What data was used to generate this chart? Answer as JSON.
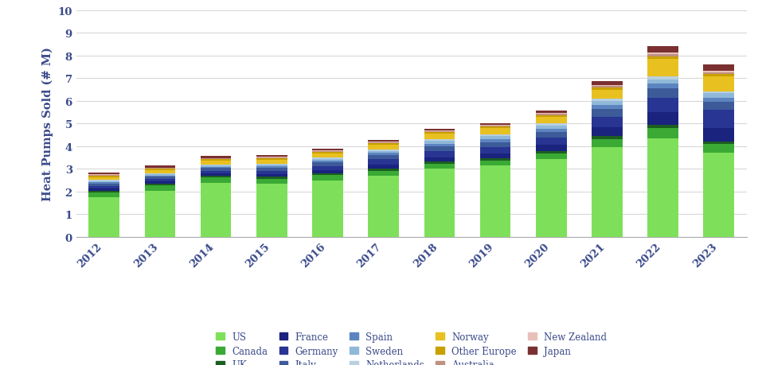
{
  "years": [
    2012,
    2013,
    2014,
    2015,
    2016,
    2017,
    2018,
    2019,
    2020,
    2021,
    2022,
    2023
  ],
  "series": {
    "US": [
      1.75,
      2.05,
      2.4,
      2.35,
      2.5,
      2.7,
      3.0,
      3.15,
      3.45,
      3.95,
      4.35,
      3.7
    ],
    "Canada": [
      0.22,
      0.22,
      0.22,
      0.22,
      0.22,
      0.22,
      0.22,
      0.22,
      0.22,
      0.35,
      0.45,
      0.4
    ],
    "UK": [
      0.08,
      0.08,
      0.08,
      0.08,
      0.08,
      0.1,
      0.1,
      0.1,
      0.12,
      0.15,
      0.15,
      0.12
    ],
    "France": [
      0.1,
      0.1,
      0.1,
      0.12,
      0.15,
      0.18,
      0.2,
      0.22,
      0.28,
      0.38,
      0.55,
      0.6
    ],
    "Germany": [
      0.1,
      0.1,
      0.12,
      0.15,
      0.18,
      0.22,
      0.25,
      0.28,
      0.32,
      0.45,
      0.65,
      0.8
    ],
    "Italy": [
      0.1,
      0.1,
      0.12,
      0.12,
      0.15,
      0.18,
      0.22,
      0.22,
      0.25,
      0.35,
      0.4,
      0.35
    ],
    "Spain": [
      0.06,
      0.06,
      0.06,
      0.07,
      0.08,
      0.1,
      0.12,
      0.12,
      0.14,
      0.18,
      0.2,
      0.18
    ],
    "Sweden": [
      0.06,
      0.06,
      0.06,
      0.07,
      0.08,
      0.1,
      0.12,
      0.13,
      0.14,
      0.18,
      0.2,
      0.18
    ],
    "Netherlands": [
      0.04,
      0.04,
      0.04,
      0.05,
      0.05,
      0.06,
      0.07,
      0.07,
      0.08,
      0.1,
      0.12,
      0.1
    ],
    "Norway": [
      0.12,
      0.12,
      0.15,
      0.16,
      0.18,
      0.2,
      0.25,
      0.28,
      0.3,
      0.4,
      0.8,
      0.65
    ],
    "Other Europe": [
      0.07,
      0.07,
      0.07,
      0.08,
      0.08,
      0.08,
      0.08,
      0.08,
      0.08,
      0.1,
      0.1,
      0.1
    ],
    "Australia": [
      0.04,
      0.04,
      0.04,
      0.04,
      0.04,
      0.04,
      0.04,
      0.05,
      0.05,
      0.06,
      0.08,
      0.08
    ],
    "New Zealand": [
      0.02,
      0.02,
      0.02,
      0.02,
      0.02,
      0.03,
      0.03,
      0.03,
      0.04,
      0.05,
      0.08,
      0.07
    ],
    "Japan": [
      0.08,
      0.08,
      0.08,
      0.08,
      0.08,
      0.08,
      0.08,
      0.08,
      0.09,
      0.18,
      0.28,
      0.28
    ]
  },
  "colors": {
    "US": "#7EE05A",
    "Canada": "#3AAA35",
    "UK": "#1B5E20",
    "France": "#1A237E",
    "Germany": "#283593",
    "Italy": "#3D5A99",
    "Spain": "#5C85C0",
    "Sweden": "#90B8D8",
    "Netherlands": "#B8D0E0",
    "Norway": "#E8C020",
    "Other Europe": "#C8A000",
    "Australia": "#C09080",
    "New Zealand": "#E8C0B8",
    "Japan": "#7A3030"
  },
  "ylabel": "Heat Pumps Sold (# M)",
  "ylim": [
    0,
    10
  ],
  "yticks": [
    0,
    1,
    2,
    3,
    4,
    5,
    6,
    7,
    8,
    9,
    10
  ],
  "background_color": "#ffffff",
  "legend_order": [
    "US",
    "Canada",
    "UK",
    "France",
    "Germany",
    "Italy",
    "Spain",
    "Sweden",
    "Netherlands",
    "Norway",
    "Other Europe",
    "Australia",
    "New Zealand",
    "Japan"
  ],
  "text_color": "#3A4A8A",
  "grid_color": "#D8D8D8"
}
